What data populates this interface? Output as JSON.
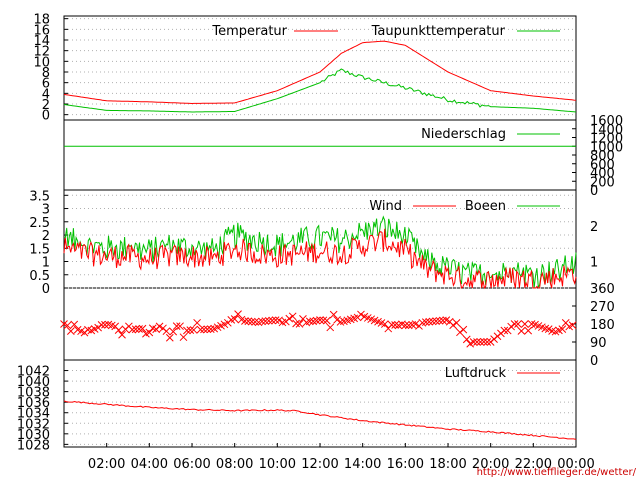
{
  "credit": "http://www.tiefflieger.de/wetter/",
  "x_tick_labels": [
    "02:00",
    "04:00",
    "06:00",
    "08:00",
    "10:00",
    "12:00",
    "14:00",
    "16:00",
    "18:00",
    "20:00",
    "22:00",
    "00:00"
  ],
  "colors": {
    "red": "#ff0000",
    "green": "#00c000",
    "grid": "#b0b0b0",
    "credit": "#cc0000"
  },
  "chart_data": [
    {
      "type": "line",
      "title": "",
      "x": [
        "00:00",
        "02:00",
        "04:00",
        "06:00",
        "08:00",
        "10:00",
        "12:00",
        "13:00",
        "14:00",
        "15:00",
        "16:00",
        "18:00",
        "20:00",
        "22:00",
        "00:00"
      ],
      "series": [
        {
          "name": "Temperatur",
          "color": "#ff0000",
          "values": [
            3.8,
            2.6,
            2.4,
            2.1,
            2.2,
            4.5,
            8.0,
            11.5,
            13.5,
            13.8,
            13.0,
            8.0,
            4.5,
            3.5,
            2.7
          ]
        },
        {
          "name": "Taupunkttemperatur",
          "color": "#00c000",
          "values": [
            1.9,
            0.8,
            0.7,
            0.5,
            0.6,
            3.0,
            6.0,
            8.3,
            7.0,
            6.0,
            5.0,
            2.8,
            1.5,
            1.2,
            0.5
          ]
        }
      ],
      "y_ticks": [
        "0",
        "2",
        "4",
        "6",
        "8",
        "10",
        "12",
        "14",
        "16",
        "18"
      ],
      "ylim": [
        -1,
        18.5
      ],
      "grid": true,
      "legend": "top-right"
    },
    {
      "type": "line",
      "title": "",
      "x": [
        "00:00",
        "00:00"
      ],
      "series": [
        {
          "name": "Niederschlag",
          "color": "#00c000",
          "values": [
            1000,
            1000
          ]
        }
      ],
      "y_ticks": [
        "0",
        "200",
        "400",
        "600",
        "800",
        "1000",
        "1200",
        "1400",
        "1600"
      ],
      "ylim": [
        0,
        1600
      ],
      "y_axis": "right",
      "legend": "top-right"
    },
    {
      "type": "line",
      "title": "",
      "series": [
        {
          "name": "Wind",
          "color": "#ff0000",
          "values_by_hour": [
            1.5,
            1.3,
            1.2,
            1.2,
            1.1,
            1.2,
            1.2,
            1.1,
            1.5,
            1.3,
            1.2,
            1.3,
            1.4,
            1.3,
            1.6,
            1.8,
            1.4,
            0.7,
            0.5,
            0.3,
            0.3,
            0.4,
            0.3,
            0.4,
            0.6
          ]
        },
        {
          "name": "Boeen",
          "color": "#00c000",
          "values_by_hour": [
            1.9,
            1.6,
            1.5,
            1.5,
            1.4,
            1.6,
            1.5,
            1.4,
            2.0,
            1.8,
            1.6,
            1.8,
            1.9,
            1.8,
            2.1,
            2.3,
            1.9,
            1.0,
            0.7,
            0.5,
            0.5,
            0.6,
            0.5,
            0.6,
            0.9
          ]
        }
      ],
      "y_ticks_left": [
        "0",
        "0.5",
        "1",
        "1.5",
        "2",
        "2.5",
        "3",
        "3.5"
      ],
      "y_ticks_right": [
        "1",
        "2"
      ],
      "ylim": [
        0,
        3.7
      ],
      "grid": true,
      "legend": "top-right"
    },
    {
      "type": "scatter",
      "title": "",
      "series": [
        {
          "name": "",
          "color": "#ff0000",
          "marker": "x",
          "values_by_hour": [
            180,
            135,
            180,
            150,
            160,
            140,
            150,
            155,
            200,
            190,
            200,
            180,
            200,
            190,
            220,
            180,
            170,
            190,
            200,
            90,
            90,
            180,
            180,
            140,
            180
          ]
        }
      ],
      "y_ticks": [
        "0",
        "90",
        "180",
        "270",
        "360"
      ],
      "ylim": [
        0,
        360
      ],
      "y_axis": "right"
    },
    {
      "type": "line",
      "title": "",
      "series": [
        {
          "name": "Luftdruck",
          "color": "#ff0000",
          "x": [
            "00:00",
            "02:00",
            "04:00",
            "06:00",
            "08:00",
            "10:00",
            "11:00",
            "12:00",
            "14:00",
            "16:00",
            "18:00",
            "20:00",
            "22:00",
            "00:00"
          ],
          "values": [
            1036.2,
            1035.6,
            1035.0,
            1034.6,
            1034.4,
            1034.5,
            1034.3,
            1033.6,
            1032.5,
            1031.7,
            1030.9,
            1030.4,
            1029.7,
            1029.0
          ]
        }
      ],
      "y_ticks": [
        "1028",
        "1030",
        "1032",
        "1034",
        "1036",
        "1038",
        "1040",
        "1042"
      ],
      "ylim": [
        1027.5,
        1044
      ],
      "legend": "top-right"
    }
  ]
}
